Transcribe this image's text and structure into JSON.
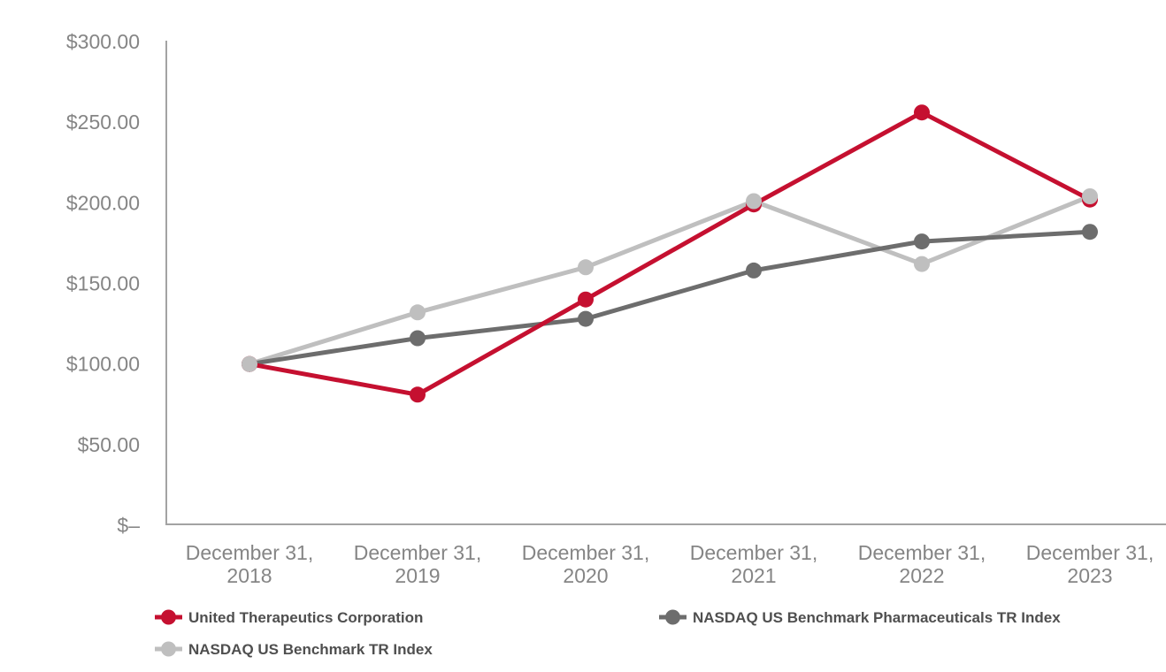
{
  "chart_data": {
    "type": "line",
    "categories": [
      "December 31, 2018",
      "December 31, 2019",
      "December 31, 2020",
      "December 31, 2021",
      "December 31, 2022",
      "December 31, 2023"
    ],
    "series": [
      {
        "name": "United Therapeutics Corporation",
        "color": "#C51030",
        "values": [
          100,
          81,
          140,
          199,
          256,
          202
        ]
      },
      {
        "name": "NASDAQ US Benchmark TR Index",
        "color": "#BFBFBF",
        "values": [
          100,
          132,
          160,
          201,
          162,
          204
        ]
      },
      {
        "name": "NASDAQ US Benchmark Pharmaceuticals TR Index",
        "color": "#6D6D6D",
        "values": [
          100,
          116,
          128,
          158,
          176,
          182
        ]
      }
    ],
    "y_axis": {
      "tick_labels": [
        "$300.00",
        "$250.00",
        "$200.00",
        "$150.00",
        "$100.00",
        "$50.00",
        "$–"
      ],
      "tick_values": [
        300,
        250,
        200,
        150,
        100,
        50,
        0
      ],
      "min": 0,
      "max": 300
    },
    "grid": false,
    "legend_position": "bottom",
    "legend_order": [
      {
        "series_index": 0,
        "row": 0,
        "col": 0
      },
      {
        "series_index": 2,
        "row": 0,
        "col": 1
      },
      {
        "series_index": 1,
        "row": 1,
        "col": 0
      }
    ],
    "colors": {
      "axis_line": "#A3A3A3",
      "tick_label": "#858585",
      "legend_text": "#4F4F4F",
      "background": "#FFFFFF"
    }
  }
}
